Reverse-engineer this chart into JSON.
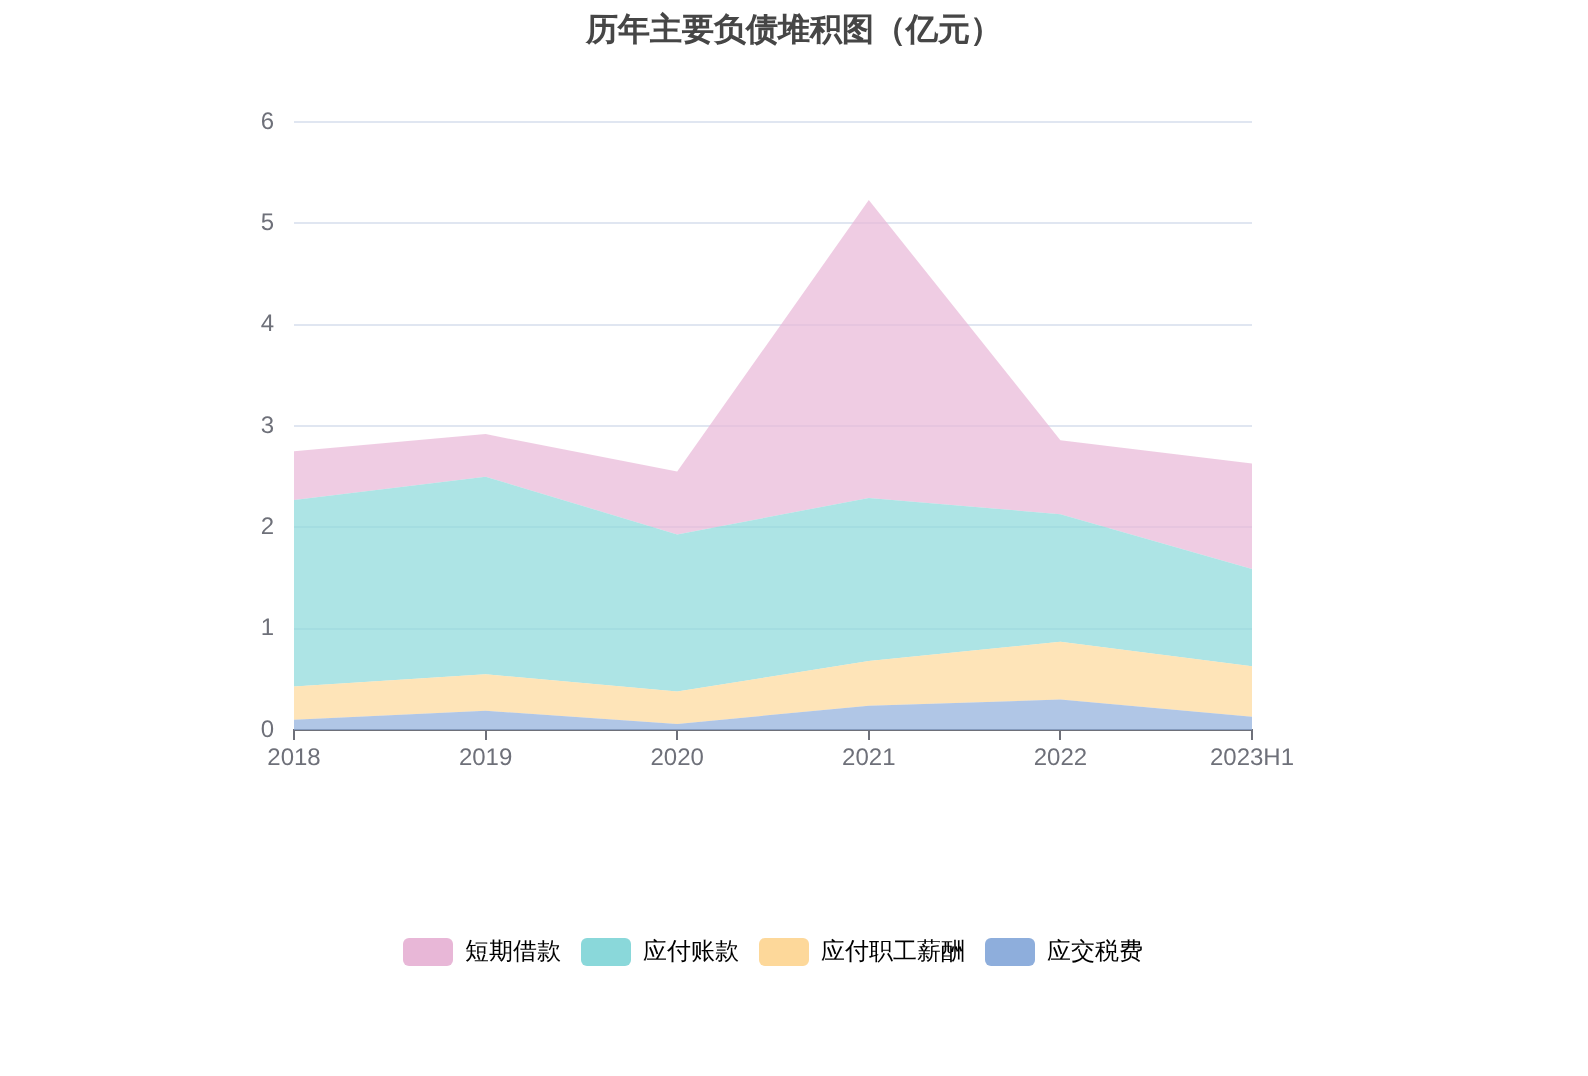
{
  "chart_data": {
    "type": "area",
    "title": "历年主要负债堆积图（亿元）",
    "categories": [
      "2018",
      "2019",
      "2020",
      "2021",
      "2022",
      "2023H1"
    ],
    "stacked": true,
    "series": [
      {
        "name": "应交税费",
        "color": "#8eaedc",
        "values": [
          0.1,
          0.19,
          0.06,
          0.24,
          0.3,
          0.13
        ]
      },
      {
        "name": "应付职工薪酬",
        "color": "#fdd89a",
        "values": [
          0.33,
          0.36,
          0.32,
          0.44,
          0.57,
          0.5
        ]
      },
      {
        "name": "应付账款",
        "color": "#8ad8da",
        "values": [
          1.84,
          1.95,
          1.55,
          1.61,
          1.26,
          0.96
        ]
      },
      {
        "name": "短期借款",
        "color": "#e8b7d7",
        "values": [
          0.48,
          0.42,
          0.62,
          2.94,
          0.73,
          1.04
        ]
      }
    ],
    "ylim": [
      0,
      6
    ],
    "yticks": [
      0,
      1,
      2,
      3,
      4,
      5,
      6
    ],
    "grid": "y",
    "legend": "bottom"
  }
}
